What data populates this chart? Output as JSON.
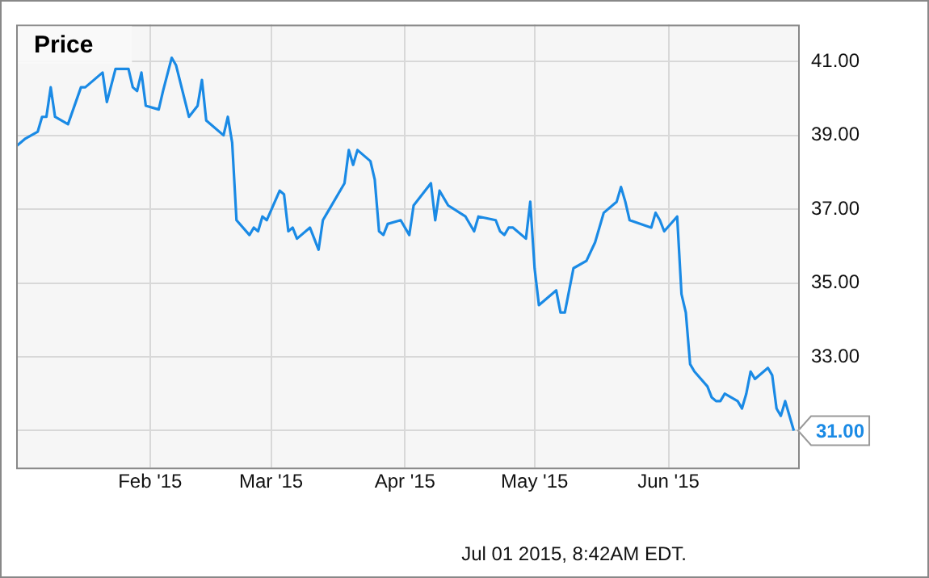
{
  "chart_data": {
    "type": "line",
    "title": "Price",
    "x": [
      "2015-01-01",
      "2015-01-03",
      "2015-01-06",
      "2015-01-07",
      "2015-01-08",
      "2015-01-09",
      "2015-01-10",
      "2015-01-13",
      "2015-01-16",
      "2015-01-17",
      "2015-01-21",
      "2015-01-22",
      "2015-01-24",
      "2015-01-27",
      "2015-01-28",
      "2015-01-29",
      "2015-01-30",
      "2015-01-31",
      "2015-02-03",
      "2015-02-04",
      "2015-02-06",
      "2015-02-07",
      "2015-02-10",
      "2015-02-12",
      "2015-02-13",
      "2015-02-14",
      "2015-02-18",
      "2015-02-19",
      "2015-02-20",
      "2015-02-21",
      "2015-02-24",
      "2015-02-25",
      "2015-02-26",
      "2015-02-27",
      "2015-02-28",
      "2015-03-03",
      "2015-03-04",
      "2015-03-05",
      "2015-03-06",
      "2015-03-07",
      "2015-03-10",
      "2015-03-12",
      "2015-03-13",
      "2015-03-14",
      "2015-03-18",
      "2015-03-19",
      "2015-03-20",
      "2015-03-21",
      "2015-03-24",
      "2015-03-25",
      "2015-03-26",
      "2015-03-27",
      "2015-03-28",
      "2015-03-31",
      "2015-04-02",
      "2015-04-03",
      "2015-04-07",
      "2015-04-08",
      "2015-04-09",
      "2015-04-11",
      "2015-04-15",
      "2015-04-17",
      "2015-04-18",
      "2015-04-22",
      "2015-04-23",
      "2015-04-24",
      "2015-04-25",
      "2015-04-26",
      "2015-04-29",
      "2015-04-30",
      "2015-05-01",
      "2015-05-02",
      "2015-05-06",
      "2015-05-07",
      "2015-05-08",
      "2015-05-10",
      "2015-05-13",
      "2015-05-15",
      "2015-05-17",
      "2015-05-20",
      "2015-05-21",
      "2015-05-22",
      "2015-05-23",
      "2015-05-28",
      "2015-05-29",
      "2015-05-30",
      "2015-05-31",
      "2015-06-03",
      "2015-06-04",
      "2015-06-05",
      "2015-06-06",
      "2015-06-07",
      "2015-06-10",
      "2015-06-11",
      "2015-06-12",
      "2015-06-13",
      "2015-06-14",
      "2015-06-17",
      "2015-06-18",
      "2015-06-19",
      "2015-06-20",
      "2015-06-21",
      "2015-06-24",
      "2015-06-25",
      "2015-06-26",
      "2015-06-27",
      "2015-06-28",
      "2015-06-30"
    ],
    "series": [
      {
        "color": "#1a8ae5",
        "values": [
          38.7,
          38.9,
          39.1,
          39.5,
          39.5,
          40.3,
          39.5,
          39.3,
          40.3,
          40.3,
          40.7,
          39.9,
          40.8,
          40.8,
          40.3,
          40.2,
          40.7,
          39.8,
          39.7,
          40.2,
          41.1,
          40.9,
          39.5,
          39.8,
          40.5,
          39.4,
          39.0,
          39.5,
          38.8,
          36.7,
          36.3,
          36.5,
          36.4,
          36.8,
          36.7,
          37.5,
          37.4,
          36.4,
          36.5,
          36.2,
          36.5,
          35.9,
          36.7,
          36.9,
          37.7,
          38.6,
          38.2,
          38.6,
          38.3,
          37.8,
          36.4,
          36.3,
          36.6,
          36.7,
          36.3,
          37.1,
          37.7,
          36.7,
          37.5,
          37.1,
          36.8,
          36.4,
          36.8,
          36.7,
          36.4,
          36.3,
          36.5,
          36.5,
          36.2,
          37.2,
          35.4,
          34.4,
          34.8,
          34.2,
          34.2,
          35.4,
          35.6,
          36.1,
          36.9,
          37.2,
          37.6,
          37.2,
          36.7,
          36.5,
          36.9,
          36.7,
          36.4,
          36.8,
          34.7,
          34.2,
          32.8,
          32.6,
          32.2,
          31.9,
          31.8,
          31.8,
          32.0,
          31.8,
          31.6,
          32.0,
          32.6,
          32.4,
          32.7,
          32.5,
          31.6,
          31.4,
          31.8,
          31.0
        ],
        "value_labels": [
          null,
          null,
          null,
          null,
          null,
          null,
          null,
          null,
          null,
          null,
          null,
          null,
          null,
          null,
          null,
          null,
          null,
          null,
          null,
          null,
          null,
          null,
          null,
          null,
          null,
          null,
          null,
          null,
          null,
          null,
          null,
          null,
          null,
          null,
          null,
          null,
          null,
          null,
          null,
          null,
          null,
          null,
          null,
          null,
          null,
          null,
          null,
          null,
          null,
          null,
          null,
          null,
          null,
          null,
          null,
          null,
          null,
          null,
          null,
          null,
          null,
          null,
          null,
          null,
          null,
          null,
          null,
          null,
          null,
          null,
          null,
          null,
          null,
          null,
          null,
          null,
          null,
          null,
          null,
          null,
          null,
          null,
          null,
          null,
          null,
          null,
          null,
          null,
          null,
          null,
          null,
          null,
          null,
          null,
          null,
          null,
          null,
          null,
          null,
          null,
          null,
          null,
          null,
          null,
          null,
          null,
          null,
          "31.00"
        ]
      }
    ],
    "xlim": [
      "2015-01-01",
      "2015-07-01"
    ],
    "xticks": [
      {
        "value": "2015-02-01",
        "label": "Feb '15"
      },
      {
        "value": "2015-03-01",
        "label": "Mar '15"
      },
      {
        "value": "2015-04-01",
        "label": "Apr '15"
      },
      {
        "value": "2015-05-01",
        "label": "May '15"
      },
      {
        "value": "2015-06-01",
        "label": "Jun '15"
      }
    ],
    "ylim": [
      30,
      42
    ],
    "yticks": [
      {
        "value": 31,
        "label": null
      },
      {
        "value": 33,
        "label": "33.00"
      },
      {
        "value": 35,
        "label": "35.00"
      },
      {
        "value": 37,
        "label": "37.00"
      },
      {
        "value": 39,
        "label": "39.00"
      },
      {
        "value": 41,
        "label": "41.00"
      }
    ],
    "grid": true,
    "legend": false,
    "marker": "none",
    "line_style": "solid",
    "annotations": [
      "Jul 01 2015, 8:42AM EDT."
    ]
  }
}
